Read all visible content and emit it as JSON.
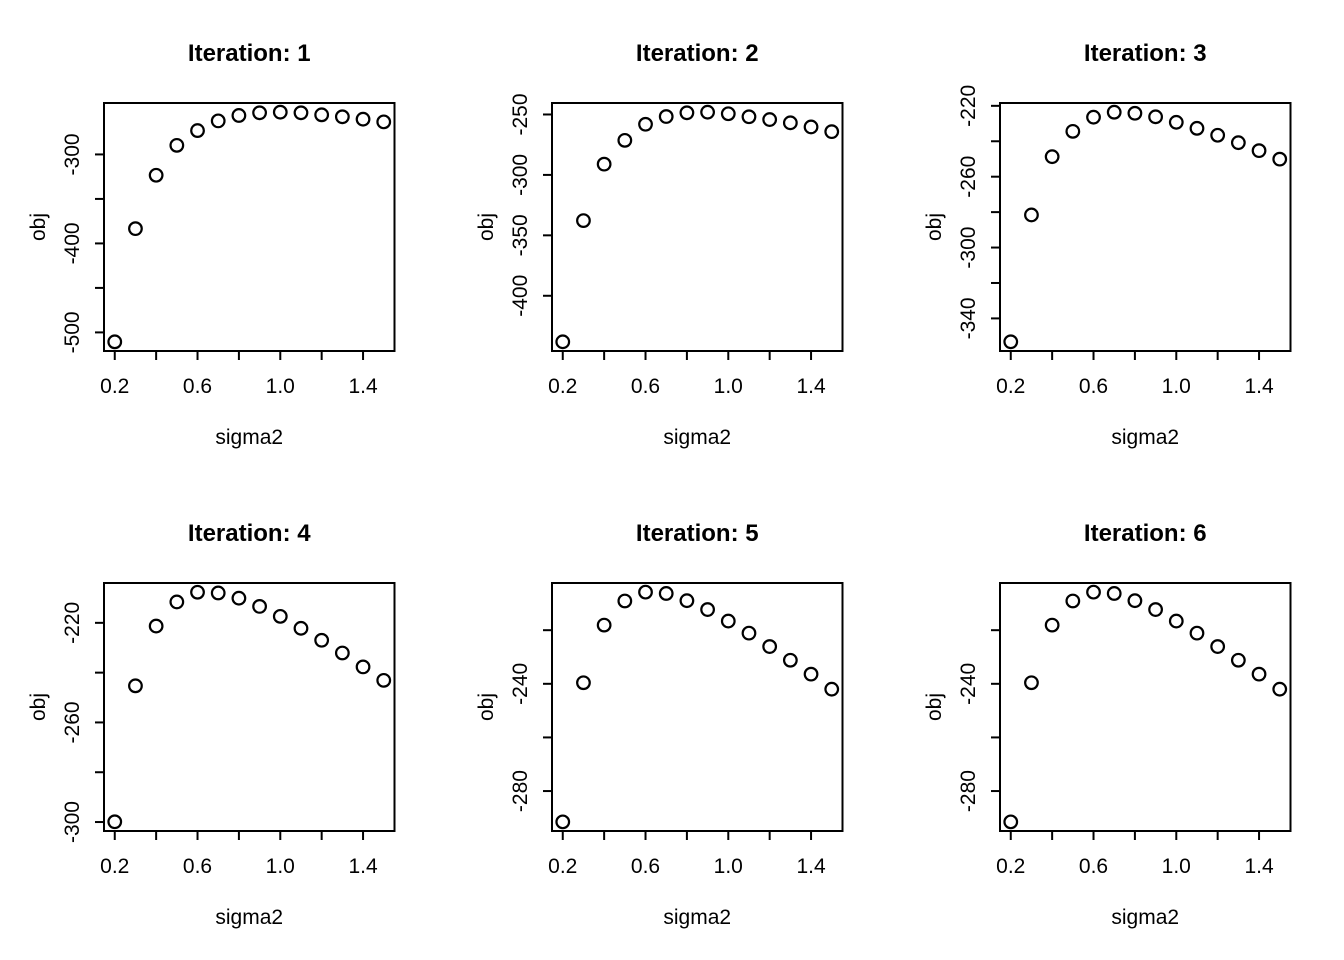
{
  "figure": {
    "background": "#ffffff",
    "foreground": "#000000",
    "layout": "2x3-grid",
    "marker": "open-circle"
  },
  "chart_data": [
    {
      "type": "scatter",
      "title": "Iteration: 1",
      "xlabel": "sigma2",
      "ylabel": "obj",
      "x": [
        0.2,
        0.3,
        0.4,
        0.5,
        0.6,
        0.7,
        0.8,
        0.9,
        1.0,
        1.1,
        1.2,
        1.3,
        1.4,
        1.5
      ],
      "y": [
        -510.6,
        -383.4,
        -323.4,
        -289.8,
        -273.2,
        -262.3,
        -256.2,
        -253.2,
        -252.5,
        -253.2,
        -255.5,
        -257.7,
        -260.4,
        -263.4
      ],
      "xlim": [
        0.148,
        1.552
      ],
      "ylim": [
        -520.9,
        -242.2
      ],
      "xticks": [
        0.2,
        0.4,
        0.6,
        0.8,
        1.0,
        1.2,
        1.4
      ],
      "xtick_labels": [
        [
          0.2,
          "0.2"
        ],
        [
          0.6,
          "0.6"
        ],
        [
          1.0,
          "1.0"
        ],
        [
          1.4,
          "1.4"
        ]
      ],
      "yticks": [
        -500,
        -450,
        -400,
        -350,
        -300
      ],
      "ytick_labels": [
        [
          -500,
          "-500"
        ],
        [
          -400,
          "-400"
        ],
        [
          -300,
          "-300"
        ]
      ],
      "grid": false
    },
    {
      "type": "scatter",
      "title": "Iteration: 2",
      "xlabel": "sigma2",
      "ylabel": "obj",
      "x": [
        0.2,
        0.3,
        0.4,
        0.5,
        0.6,
        0.7,
        0.8,
        0.9,
        1.0,
        1.1,
        1.2,
        1.3,
        1.4,
        1.5
      ],
      "y": [
        -438.1,
        -337.8,
        -291.1,
        -271.4,
        -258.1,
        -251.7,
        -248.6,
        -248.1,
        -249.4,
        -251.9,
        -254.2,
        -256.9,
        -260.3,
        -264.2
      ],
      "xlim": [
        0.148,
        1.552
      ],
      "ylim": [
        -445.7,
        -240.5
      ],
      "xticks": [
        0.2,
        0.4,
        0.6,
        0.8,
        1.0,
        1.2,
        1.4
      ],
      "xtick_labels": [
        [
          0.2,
          "0.2"
        ],
        [
          0.6,
          "0.6"
        ],
        [
          1.0,
          "1.0"
        ],
        [
          1.4,
          "1.4"
        ]
      ],
      "yticks": [
        -400,
        -350,
        -300,
        -250
      ],
      "ytick_labels": [
        [
          -400,
          "-400"
        ],
        [
          -350,
          "-350"
        ],
        [
          -300,
          "-300"
        ],
        [
          -250,
          "-250"
        ]
      ],
      "grid": false
    },
    {
      "type": "scatter",
      "title": "Iteration: 3",
      "xlabel": "sigma2",
      "ylabel": "obj",
      "x": [
        0.2,
        0.3,
        0.4,
        0.5,
        0.6,
        0.7,
        0.8,
        0.9,
        1.0,
        1.1,
        1.2,
        1.3,
        1.4,
        1.5
      ],
      "y": [
        -353.2,
        -281.6,
        -248.7,
        -234.4,
        -226.4,
        -223.6,
        -224.2,
        -226.2,
        -229.3,
        -232.7,
        -236.6,
        -240.8,
        -245.3,
        -250.1
      ],
      "xlim": [
        0.148,
        1.552
      ],
      "ylim": [
        -358.4,
        -218.4
      ],
      "xticks": [
        0.2,
        0.4,
        0.6,
        0.8,
        1.0,
        1.2,
        1.4
      ],
      "xtick_labels": [
        [
          0.2,
          "0.2"
        ],
        [
          0.6,
          "0.6"
        ],
        [
          1.0,
          "1.0"
        ],
        [
          1.4,
          "1.4"
        ]
      ],
      "yticks": [
        -340,
        -320,
        -300,
        -280,
        -260,
        -240,
        -220
      ],
      "ytick_labels": [
        [
          -340,
          "-340"
        ],
        [
          -300,
          "-300"
        ],
        [
          -260,
          "-260"
        ],
        [
          -220,
          "-220"
        ]
      ],
      "grid": false
    },
    {
      "type": "scatter",
      "title": "Iteration: 4",
      "xlabel": "sigma2",
      "ylabel": "obj",
      "x": [
        0.2,
        0.3,
        0.4,
        0.5,
        0.6,
        0.7,
        0.8,
        0.9,
        1.0,
        1.1,
        1.2,
        1.3,
        1.4,
        1.5
      ],
      "y": [
        -299.9,
        -245.3,
        -221.3,
        -211.6,
        -207.7,
        -208.0,
        -210.1,
        -213.4,
        -217.4,
        -222.2,
        -227.0,
        -232.1,
        -237.7,
        -243.1
      ],
      "xlim": [
        0.148,
        1.552
      ],
      "ylim": [
        -303.6,
        -204.0
      ],
      "xticks": [
        0.2,
        0.4,
        0.6,
        0.8,
        1.0,
        1.2,
        1.4
      ],
      "xtick_labels": [
        [
          0.2,
          "0.2"
        ],
        [
          0.6,
          "0.6"
        ],
        [
          1.0,
          "1.0"
        ],
        [
          1.4,
          "1.4"
        ]
      ],
      "yticks": [
        -300,
        -280,
        -260,
        -240,
        -220
      ],
      "ytick_labels": [
        [
          -300,
          "-300"
        ],
        [
          -260,
          "-260"
        ],
        [
          -220,
          "-220"
        ]
      ],
      "grid": false
    },
    {
      "type": "scatter",
      "title": "Iteration: 5",
      "xlabel": "sigma2",
      "ylabel": "obj",
      "x": [
        0.2,
        0.3,
        0.4,
        0.5,
        0.6,
        0.7,
        0.8,
        0.9,
        1.0,
        1.1,
        1.2,
        1.3,
        1.4,
        1.5
      ],
      "y": [
        -291.5,
        -239.6,
        -218.1,
        -209.1,
        -205.8,
        -206.3,
        -209.0,
        -212.3,
        -216.6,
        -221.1,
        -226.1,
        -231.2,
        -236.4,
        -242.0
      ],
      "xlim": [
        0.148,
        1.552
      ],
      "ylim": [
        -294.9,
        -202.4
      ],
      "xticks": [
        0.2,
        0.4,
        0.6,
        0.8,
        1.0,
        1.2,
        1.4
      ],
      "xtick_labels": [
        [
          0.2,
          "0.2"
        ],
        [
          0.6,
          "0.6"
        ],
        [
          1.0,
          "1.0"
        ],
        [
          1.4,
          "1.4"
        ]
      ],
      "yticks": [
        -280,
        -260,
        -240,
        -220
      ],
      "ytick_labels": [
        [
          -280,
          "-280"
        ],
        [
          -240,
          "-240"
        ]
      ],
      "grid": false
    },
    {
      "type": "scatter",
      "title": "Iteration: 6",
      "xlabel": "sigma2",
      "ylabel": "obj",
      "x": [
        0.2,
        0.3,
        0.4,
        0.5,
        0.6,
        0.7,
        0.8,
        0.9,
        1.0,
        1.1,
        1.2,
        1.3,
        1.4,
        1.5
      ],
      "y": [
        -291.5,
        -239.6,
        -218.1,
        -209.1,
        -205.8,
        -206.3,
        -209.0,
        -212.3,
        -216.6,
        -221.1,
        -226.1,
        -231.2,
        -236.4,
        -242.0
      ],
      "xlim": [
        0.148,
        1.552
      ],
      "ylim": [
        -294.9,
        -202.4
      ],
      "xticks": [
        0.2,
        0.4,
        0.6,
        0.8,
        1.0,
        1.2,
        1.4
      ],
      "xtick_labels": [
        [
          0.2,
          "0.2"
        ],
        [
          0.6,
          "0.6"
        ],
        [
          1.0,
          "1.0"
        ],
        [
          1.4,
          "1.4"
        ]
      ],
      "yticks": [
        -280,
        -260,
        -240,
        -220
      ],
      "ytick_labels": [
        [
          -280,
          "-280"
        ],
        [
          -240,
          "-240"
        ]
      ],
      "grid": false
    }
  ]
}
